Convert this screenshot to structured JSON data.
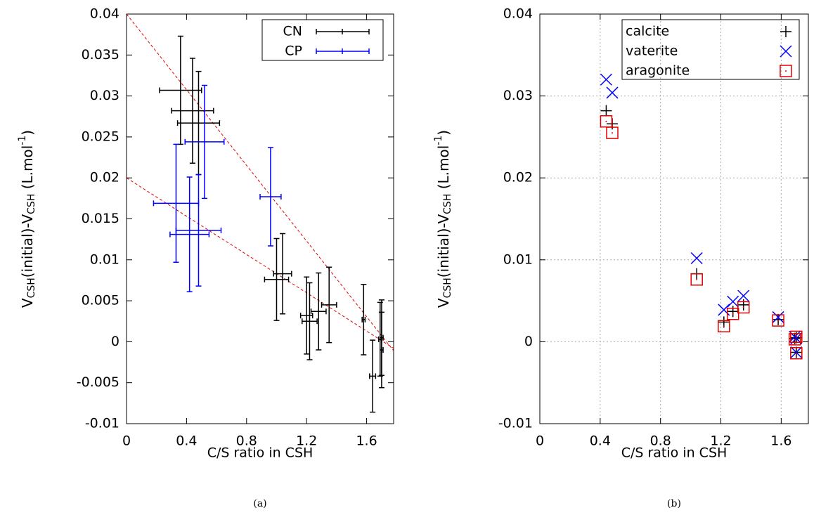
{
  "chart_data": [
    {
      "type": "errorbar",
      "xlabel": "C/S ratio in CSH",
      "ylabel_parts": [
        "V",
        "CSH",
        "(initial)-V",
        "CSH",
        " (L.mol",
        "-1",
        ")"
      ],
      "caption": "(a)",
      "xlim": [
        0,
        1.78
      ],
      "ylim": [
        -0.01,
        0.04
      ],
      "xticks": [
        0,
        0.4,
        0.8,
        1.2,
        1.6
      ],
      "yticks": [
        -0.01,
        -0.005,
        0,
        0.005,
        0.01,
        0.015,
        0.02,
        0.025,
        0.03,
        0.035,
        0.04
      ],
      "grid": false,
      "legend": "upper right",
      "series": [
        {
          "name": "CN",
          "color": "#000000",
          "x": [
            0.36,
            0.44,
            0.48,
            1.04,
            1.0,
            1.2,
            1.22,
            1.28,
            1.35,
            1.58,
            1.64,
            1.69,
            1.7,
            1.7
          ],
          "values": [
            0.0307,
            0.0282,
            0.0267,
            0.0083,
            0.0076,
            0.0032,
            0.0025,
            0.0037,
            0.0045,
            0.0027,
            -0.0042,
            0.0003,
            -0.001,
            0.0005
          ],
          "xerr": [
            0.14,
            0.14,
            0.14,
            0.06,
            0.08,
            0.04,
            0.05,
            0.05,
            0.05,
            0.01,
            0.02,
            0.01,
            0.01,
            0.01
          ],
          "yerr": [
            0.0066,
            0.0064,
            0.0063,
            0.0049,
            0.005,
            0.0047,
            0.0047,
            0.0047,
            0.0046,
            0.0043,
            0.0044,
            0.0045,
            0.0046,
            0.0046
          ]
        },
        {
          "name": "CP",
          "color": "#0000ff",
          "x": [
            0.33,
            0.42,
            0.48,
            0.52,
            0.96
          ],
          "values": [
            0.0169,
            0.0131,
            0.0136,
            0.0244,
            0.0177
          ],
          "xerr": [
            0.15,
            0.13,
            0.15,
            0.13,
            0.07
          ],
          "yerr": [
            0.0072,
            0.007,
            0.0068,
            0.0069,
            0.006
          ]
        }
      ],
      "fit_lines": [
        {
          "color": "#e00000",
          "x": [
            0,
            1.78
          ],
          "values": [
            0.04,
            -0.0011
          ]
        },
        {
          "color": "#e00000",
          "x": [
            0,
            1.78
          ],
          "values": [
            0.02,
            -0.0008
          ]
        }
      ]
    },
    {
      "type": "scatter",
      "xlabel": "C/S ratio in CSH",
      "ylabel_parts": [
        "V",
        "CSH",
        "(initial)-V",
        "CSH",
        " (L.mol",
        "-1",
        ")"
      ],
      "caption": "(b)",
      "xlim": [
        0,
        1.78
      ],
      "ylim": [
        -0.01,
        0.04
      ],
      "xticks": [
        0,
        0.4,
        0.8,
        1.2,
        1.6
      ],
      "yticks": [
        -0.01,
        0,
        0.01,
        0.02,
        0.03,
        0.04
      ],
      "grid": true,
      "legend": "upper center",
      "series": [
        {
          "name": "calcite",
          "color": "#000000",
          "marker": "plus",
          "x": [
            0.44,
            0.48,
            1.04,
            1.22,
            1.28,
            1.35,
            1.58,
            1.69,
            1.7,
            1.7
          ],
          "values": [
            0.0282,
            0.0266,
            0.0083,
            0.0024,
            0.0037,
            0.0045,
            0.0027,
            0.0004,
            0.0005,
            -0.0013
          ]
        },
        {
          "name": "vaterite",
          "color": "#0000ff",
          "marker": "cross",
          "x": [
            0.44,
            0.48,
            1.04,
            1.22,
            1.28,
            1.35,
            1.58,
            1.69,
            1.7,
            1.7
          ],
          "values": [
            0.032,
            0.0304,
            0.0102,
            0.0039,
            0.0049,
            0.0056,
            0.003,
            0.0006,
            0.0004,
            -0.0013
          ]
        },
        {
          "name": "aragonite",
          "color": "#e00000",
          "marker": "square-dot",
          "x": [
            0.44,
            0.48,
            1.04,
            1.22,
            1.28,
            1.35,
            1.58,
            1.69,
            1.7,
            1.7
          ],
          "values": [
            0.0269,
            0.0255,
            0.0076,
            0.0019,
            0.0034,
            0.0042,
            0.0026,
            0.0003,
            0.0006,
            -0.0014
          ]
        }
      ]
    }
  ]
}
